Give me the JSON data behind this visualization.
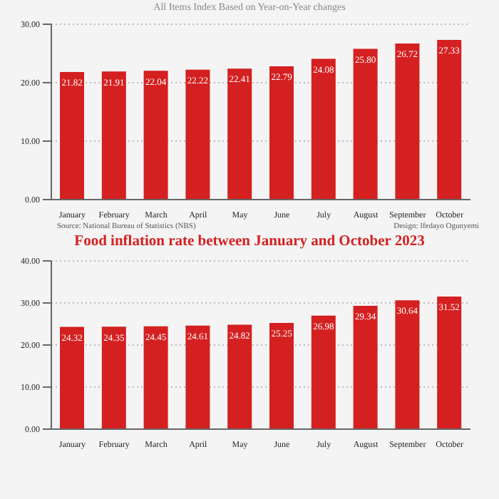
{
  "chart_data": [
    {
      "type": "bar",
      "subtitle": "All Items Index Based on Year-on-Year changes",
      "categories": [
        "January",
        "February",
        "March",
        "April",
        "May",
        "June",
        "July",
        "August",
        "September",
        "October"
      ],
      "values": [
        21.82,
        21.91,
        22.04,
        22.22,
        22.41,
        22.79,
        24.08,
        25.8,
        26.72,
        27.33
      ],
      "value_labels": [
        "21.82",
        "21.91",
        "22.04",
        "22.22",
        "22.41",
        "22.79",
        "24.08",
        "25.80",
        "26.72",
        "27.33"
      ],
      "color": "#d42020",
      "ylim": [
        0,
        30
      ],
      "yticks": [
        {
          "value": 0,
          "label": "0.00"
        },
        {
          "value": 10,
          "label": "10.00"
        },
        {
          "value": 20,
          "label": "20.00"
        },
        {
          "value": 30,
          "label": "30.00"
        }
      ],
      "grid": "y",
      "annotations": [
        "Source: National Bureau of Statistics (NBS)",
        "Design: Ifedayo Ogunyemi"
      ]
    },
    {
      "type": "bar",
      "title": "Food inflation rate between January and October 2023",
      "categories": [
        "January",
        "February",
        "March",
        "April",
        "May",
        "June",
        "July",
        "August",
        "September",
        "October"
      ],
      "values": [
        24.32,
        24.35,
        24.45,
        24.61,
        24.82,
        25.25,
        26.98,
        29.34,
        30.64,
        31.52
      ],
      "value_labels": [
        "24.32",
        "24.35",
        "24.45",
        "24.61",
        "24.82",
        "25.25",
        "26.98",
        "29.34",
        "30.64",
        "31.52"
      ],
      "color": "#d42020",
      "ylim": [
        0,
        40
      ],
      "yticks": [
        {
          "value": 0,
          "label": "0.00"
        },
        {
          "value": 10,
          "label": "10.00"
        },
        {
          "value": 20,
          "label": "20.00"
        },
        {
          "value": 30,
          "label": "30.00"
        },
        {
          "value": 40,
          "label": "40.00"
        }
      ],
      "grid": "y"
    }
  ]
}
